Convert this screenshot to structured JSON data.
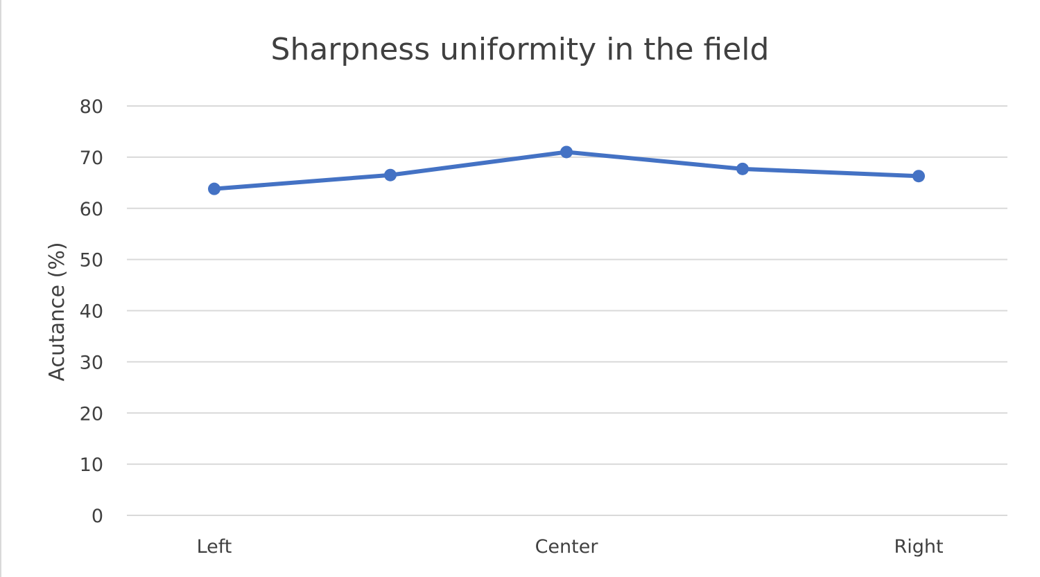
{
  "chart_data": {
    "type": "line",
    "title": "Sharpness uniformity in the field",
    "xlabel": "",
    "ylabel": "Acutance (%)",
    "ylim": [
      0,
      80
    ],
    "yticks": [
      "0",
      "10",
      "20",
      "30",
      "40",
      "50",
      "60",
      "70",
      "80"
    ],
    "categories": [
      "Left",
      "",
      "Center",
      "",
      "Right"
    ],
    "series": [
      {
        "values": [
          63.8,
          66.5,
          71.0,
          67.7,
          66.3
        ],
        "color": "#4472c4"
      }
    ],
    "grid": true,
    "markers": true
  }
}
